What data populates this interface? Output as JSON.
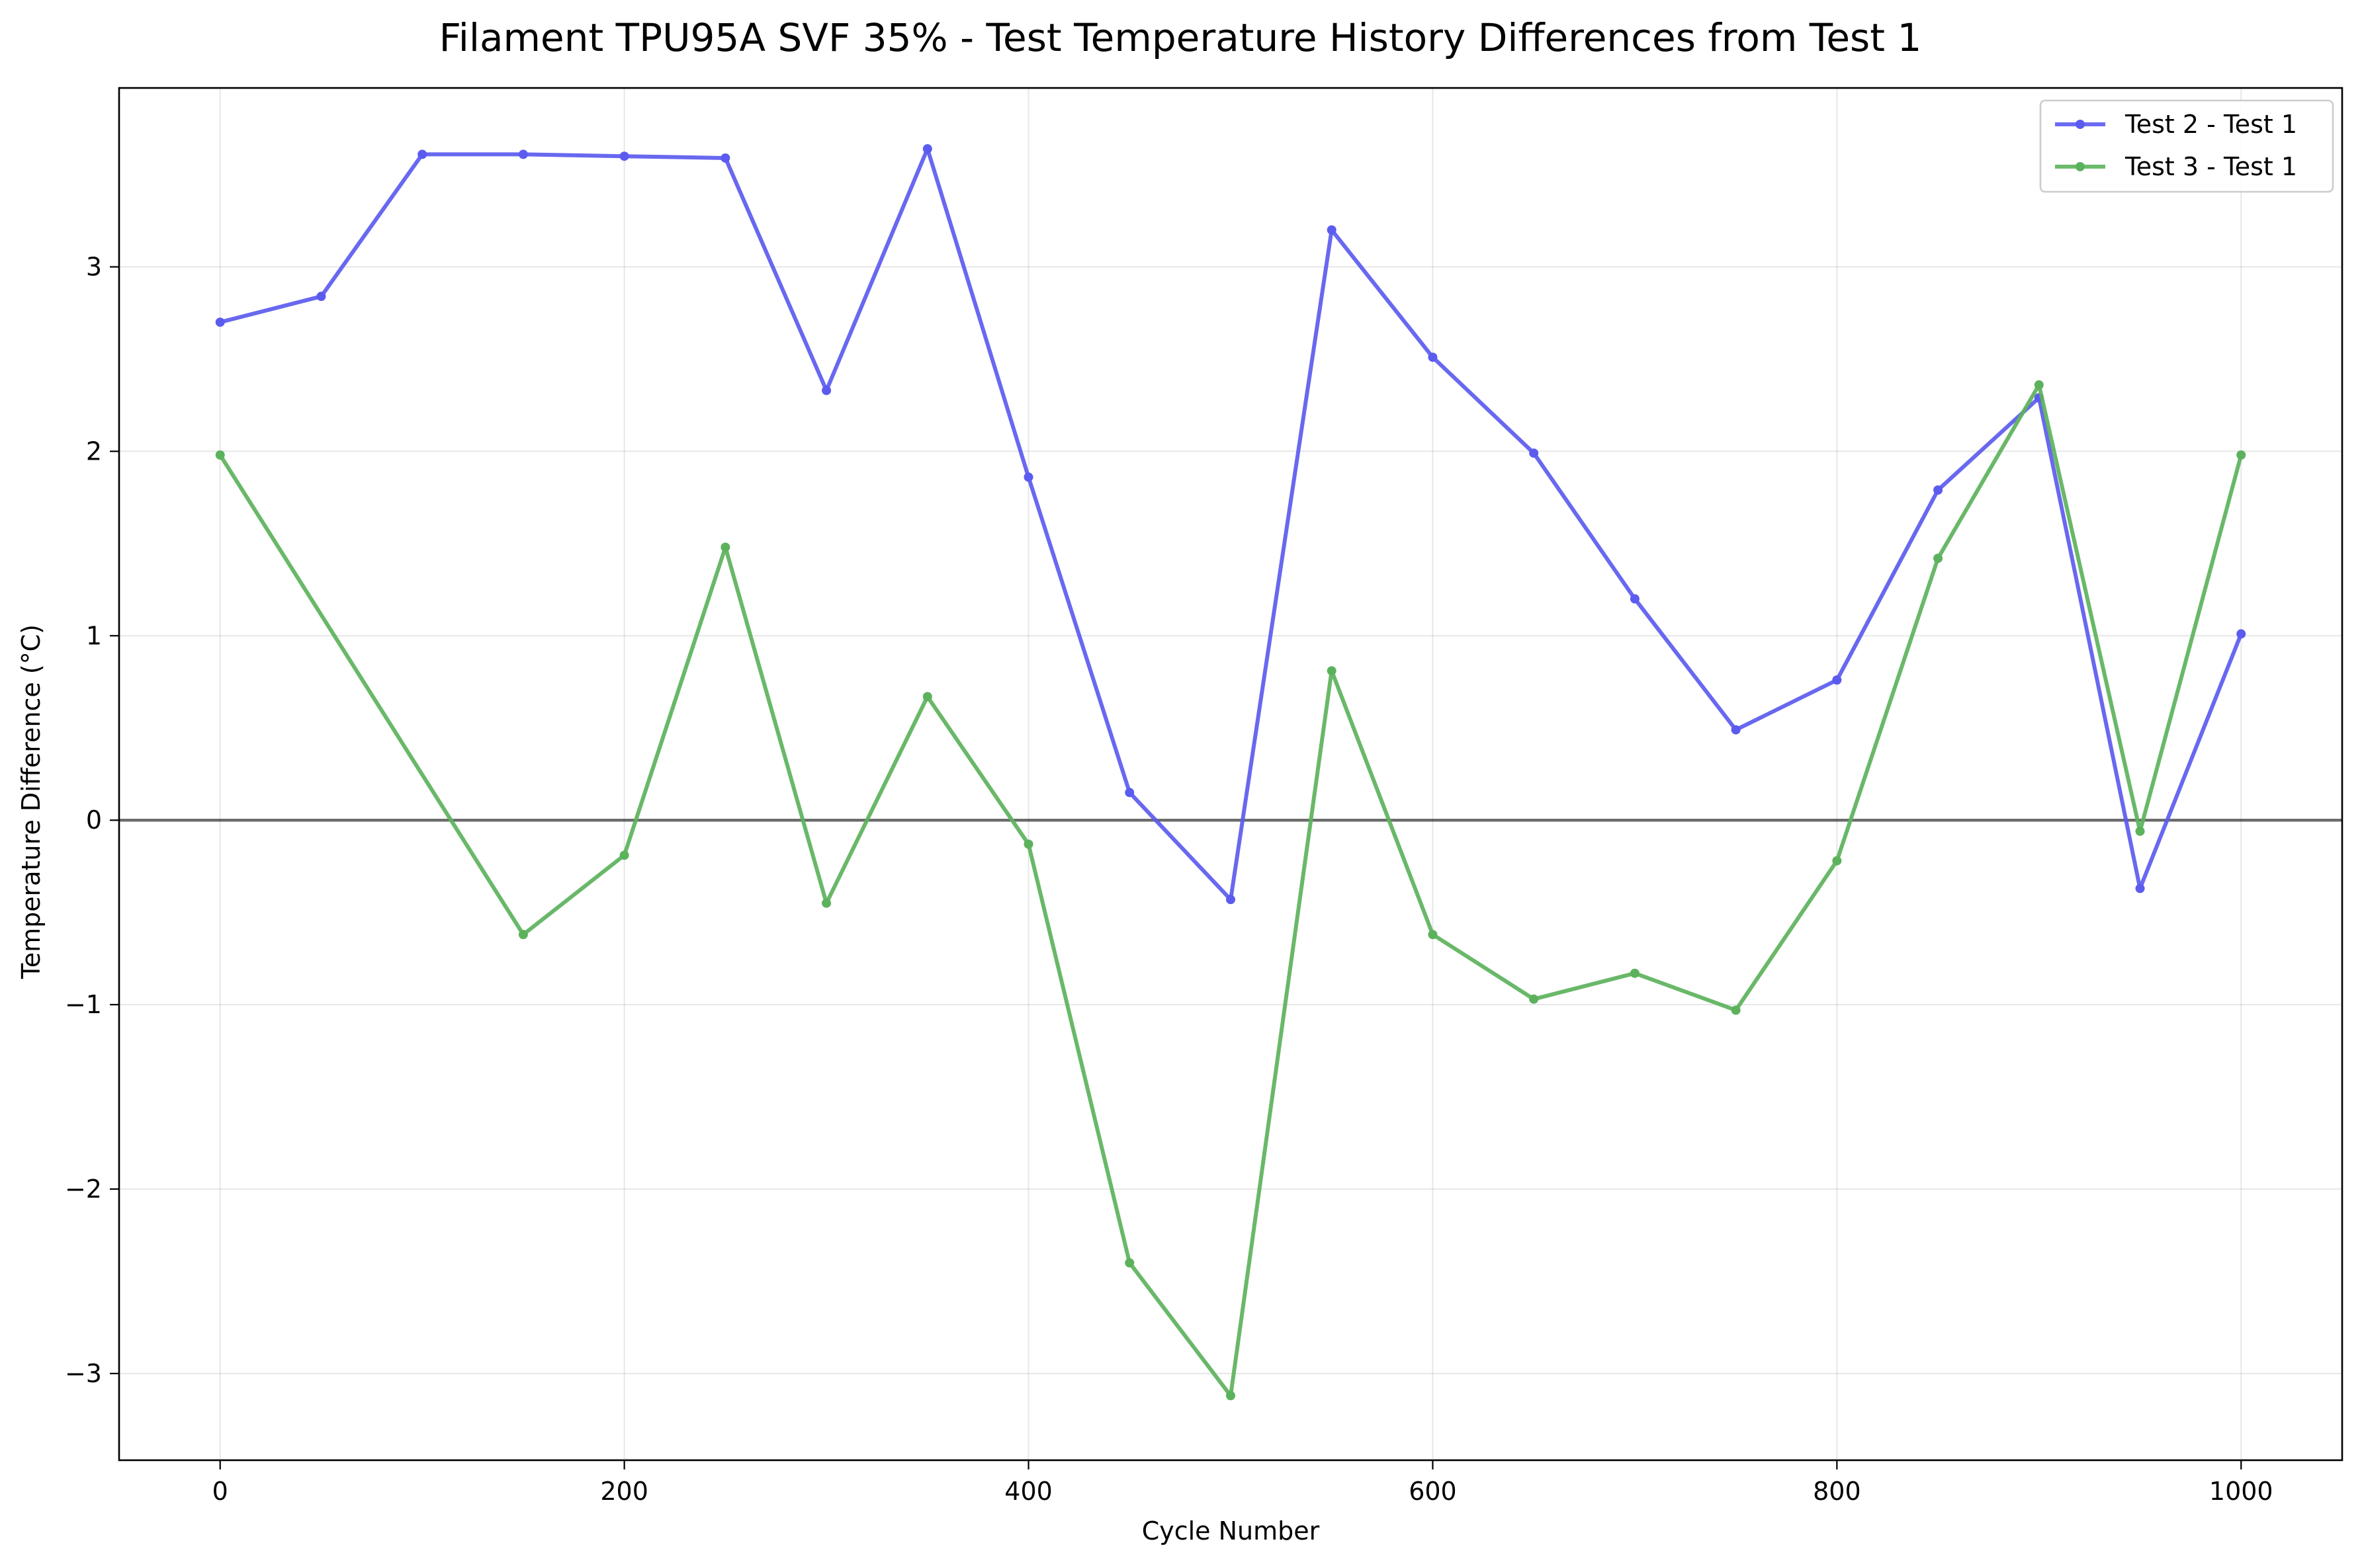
{
  "chart_data": {
    "type": "line",
    "title": "Filament TPU95A SVF 35% - Test Temperature History Differences from Test 1",
    "xlabel": "Cycle Number",
    "ylabel": "Temperature Difference (°C)",
    "xlim": [
      -50,
      1050
    ],
    "ylim": [
      -3.47,
      3.97
    ],
    "xticks": [
      0,
      200,
      400,
      600,
      800,
      1000
    ],
    "xtick_labels": [
      "0",
      "200",
      "400",
      "600",
      "800",
      "1000"
    ],
    "yticks": [
      -3,
      -2,
      -1,
      0,
      1,
      2,
      3
    ],
    "ytick_labels": [
      "−3",
      "−2",
      "−1",
      "0",
      "1",
      "2",
      "3"
    ],
    "grid": true,
    "reference_line": 0,
    "legend_position": "top-right",
    "series": [
      {
        "name": "Test 2 - Test 1",
        "color": "#5b5bef",
        "points": [
          [
            0,
            2.7
          ],
          [
            50,
            2.84
          ],
          [
            100,
            3.61
          ],
          [
            150,
            3.61
          ],
          [
            200,
            3.6
          ],
          [
            250,
            3.59
          ],
          [
            300,
            2.33
          ],
          [
            350,
            3.64
          ],
          [
            400,
            1.86
          ],
          [
            450,
            0.15
          ],
          [
            500,
            -0.43
          ],
          [
            550,
            3.2
          ],
          [
            600,
            2.51
          ],
          [
            650,
            1.99
          ],
          [
            700,
            1.2
          ],
          [
            750,
            0.49
          ],
          [
            800,
            0.76
          ],
          [
            850,
            1.79
          ],
          [
            900,
            2.29
          ],
          [
            950,
            -0.37
          ],
          [
            1000,
            1.01
          ]
        ]
      },
      {
        "name": "Test 3 - Test 1",
        "color": "#5cb25c",
        "points": [
          [
            0,
            1.98
          ],
          [
            150,
            -0.62
          ],
          [
            200,
            -0.19
          ],
          [
            250,
            1.48
          ],
          [
            300,
            -0.45
          ],
          [
            350,
            0.67
          ],
          [
            400,
            -0.13
          ],
          [
            450,
            -2.4
          ],
          [
            500,
            -3.12
          ],
          [
            550,
            0.81
          ],
          [
            600,
            -0.62
          ],
          [
            650,
            -0.97
          ],
          [
            700,
            -0.83
          ],
          [
            750,
            -1.03
          ],
          [
            800,
            -0.22
          ],
          [
            850,
            1.42
          ],
          [
            900,
            2.36
          ],
          [
            950,
            -0.06
          ],
          [
            1000,
            1.98
          ]
        ]
      }
    ]
  }
}
